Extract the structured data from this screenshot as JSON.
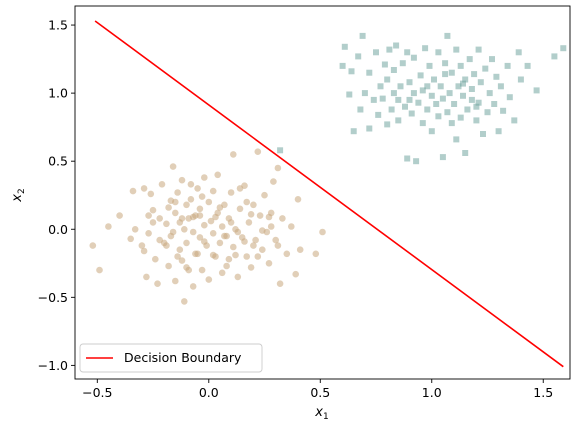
{
  "chart_data": {
    "type": "scatter",
    "xlabel": "x",
    "xlabel_sub": "1",
    "ylabel": "x",
    "ylabel_sub": "2",
    "xlim": [
      -0.6,
      1.62
    ],
    "ylim": [
      -1.1,
      1.64
    ],
    "xticks": [
      -0.5,
      0.0,
      0.5,
      1.0,
      1.5
    ],
    "xtick_labels": [
      "−0.5",
      "0.0",
      "0.5",
      "1.0",
      "1.5"
    ],
    "yticks": [
      -1.0,
      -0.5,
      0.0,
      0.5,
      1.0,
      1.5
    ],
    "ytick_labels": [
      "−1.0",
      "−0.5",
      "0.0",
      "0.5",
      "1.0",
      "1.5"
    ],
    "grid": false,
    "legend": {
      "placement": "lower-left",
      "entries": [
        "Decision Boundary"
      ]
    },
    "series": [
      {
        "marker": "circle",
        "color": "#c8a87e",
        "opacity": 0.55,
        "points": [
          [
            -0.52,
            -0.12
          ],
          [
            -0.49,
            -0.3
          ],
          [
            -0.45,
            0.02
          ],
          [
            -0.4,
            0.1
          ],
          [
            -0.35,
            -0.07
          ],
          [
            -0.34,
            0.28
          ],
          [
            -0.33,
            0.0
          ],
          [
            -0.3,
            -0.12
          ],
          [
            -0.29,
            0.3
          ],
          [
            -0.28,
            -0.35
          ],
          [
            -0.27,
            -0.03
          ],
          [
            -0.26,
            0.26
          ],
          [
            -0.25,
            0.14
          ],
          [
            -0.24,
            -0.22
          ],
          [
            -0.23,
            -0.4
          ],
          [
            -0.22,
            0.08
          ],
          [
            -0.21,
            0.33
          ],
          [
            -0.2,
            -0.1
          ],
          [
            -0.19,
            0.04
          ],
          [
            -0.18,
            -0.27
          ],
          [
            -0.17,
            0.21
          ],
          [
            -0.17,
            -0.05
          ],
          [
            -0.16,
            0.46
          ],
          [
            -0.15,
            -0.38
          ],
          [
            -0.15,
            0.12
          ],
          [
            -0.14,
            0.27
          ],
          [
            -0.13,
            -0.15
          ],
          [
            -0.13,
            0.05
          ],
          [
            -0.12,
            0.36
          ],
          [
            -0.12,
            -0.23
          ],
          [
            -0.11,
            0.0
          ],
          [
            -0.11,
            -0.53
          ],
          [
            -0.1,
            0.18
          ],
          [
            -0.1,
            -0.1
          ],
          [
            -0.09,
            -0.3
          ],
          [
            -0.09,
            0.08
          ],
          [
            -0.08,
            0.22
          ],
          [
            -0.07,
            -0.02
          ],
          [
            -0.07,
            -0.42
          ],
          [
            -0.06,
            0.1
          ],
          [
            -0.05,
            0.3
          ],
          [
            -0.05,
            -0.18
          ],
          [
            -0.04,
            -0.06
          ],
          [
            -0.04,
            0.15
          ],
          [
            -0.03,
            -0.3
          ],
          [
            -0.02,
            0.03
          ],
          [
            -0.02,
            0.38
          ],
          [
            -0.01,
            -0.12
          ],
          [
            0.0,
            0.2
          ],
          [
            0.0,
            -0.37
          ],
          [
            0.01,
            0.06
          ],
          [
            0.02,
            -0.03
          ],
          [
            0.02,
            0.28
          ],
          [
            0.03,
            -0.2
          ],
          [
            0.04,
            0.12
          ],
          [
            0.04,
            0.4
          ],
          [
            0.05,
            -0.1
          ],
          [
            0.06,
            0.02
          ],
          [
            0.06,
            -0.32
          ],
          [
            0.07,
            0.18
          ],
          [
            0.08,
            -0.05
          ],
          [
            0.09,
            0.08
          ],
          [
            0.09,
            -0.22
          ],
          [
            0.1,
            0.27
          ],
          [
            0.11,
            -0.13
          ],
          [
            0.11,
            0.55
          ],
          [
            0.12,
            0.0
          ],
          [
            0.13,
            -0.35
          ],
          [
            0.14,
            0.15
          ],
          [
            0.15,
            -0.06
          ],
          [
            0.16,
            0.32
          ],
          [
            0.17,
            -0.2
          ],
          [
            0.18,
            0.05
          ],
          [
            0.19,
            -0.28
          ],
          [
            0.2,
            0.18
          ],
          [
            0.21,
            -0.08
          ],
          [
            0.22,
            0.57
          ],
          [
            0.23,
            0.1
          ],
          [
            0.24,
            -0.15
          ],
          [
            0.25,
            0.25
          ],
          [
            0.26,
            -0.02
          ],
          [
            0.27,
            -0.25
          ],
          [
            0.28,
            0.12
          ],
          [
            0.29,
            0.35
          ],
          [
            0.3,
            -0.08
          ],
          [
            0.31,
            0.45
          ],
          [
            0.32,
            -0.4
          ],
          [
            0.33,
            0.08
          ],
          [
            0.35,
            -0.18
          ],
          [
            0.37,
            0.02
          ],
          [
            0.39,
            -0.33
          ],
          [
            0.4,
            0.22
          ],
          [
            0.41,
            -0.15
          ],
          [
            0.48,
            -0.18
          ],
          [
            0.51,
            -0.02
          ],
          [
            -0.22,
            -0.08
          ],
          [
            -0.07,
            0.09
          ],
          [
            0.16,
            -0.09
          ],
          [
            0.03,
            0.09
          ],
          [
            -0.14,
            -0.2
          ],
          [
            0.19,
            0.11
          ],
          [
            -0.29,
            -0.16
          ],
          [
            0.12,
            -0.19
          ],
          [
            -0.03,
            0.24
          ],
          [
            0.27,
            0.09
          ],
          [
            -0.18,
            0.16
          ],
          [
            0.07,
            -0.05
          ],
          [
            -0.1,
            -0.28
          ],
          [
            0.24,
            -0.01
          ],
          [
            -0.25,
            0.05
          ],
          [
            0.31,
            -0.12
          ],
          [
            0.02,
            -0.19
          ],
          [
            -0.15,
            0.2
          ],
          [
            0.17,
            0.2
          ],
          [
            -0.06,
            -0.18
          ],
          [
            0.1,
            0.05
          ],
          [
            -0.19,
            -0.12
          ],
          [
            0.05,
            0.16
          ],
          [
            -0.12,
            0.08
          ],
          [
            0.22,
            -0.2
          ],
          [
            -0.02,
            -0.09
          ],
          [
            0.14,
            0.3
          ],
          [
            -0.27,
            0.1
          ],
          [
            0.08,
            -0.27
          ],
          [
            -0.08,
            0.33
          ],
          [
            0.28,
            0.02
          ],
          [
            -0.16,
            -0.02
          ],
          [
            0.2,
            -0.12
          ],
          [
            -0.04,
            0.1
          ],
          [
            0.13,
            -0.02
          ]
        ]
      },
      {
        "marker": "square",
        "color": "#73a6a0",
        "opacity": 0.55,
        "points": [
          [
            0.32,
            0.58
          ],
          [
            0.6,
            1.2
          ],
          [
            0.61,
            1.34
          ],
          [
            0.63,
            0.99
          ],
          [
            0.64,
            1.16
          ],
          [
            0.65,
            0.72
          ],
          [
            0.67,
            1.27
          ],
          [
            0.68,
            0.88
          ],
          [
            0.69,
            1.42
          ],
          [
            0.7,
            1.0
          ],
          [
            0.72,
            0.74
          ],
          [
            0.72,
            1.15
          ],
          [
            0.74,
            0.95
          ],
          [
            0.75,
            1.3
          ],
          [
            0.76,
            0.84
          ],
          [
            0.77,
            1.05
          ],
          [
            0.78,
            0.96
          ],
          [
            0.79,
            1.21
          ],
          [
            0.8,
            0.77
          ],
          [
            0.8,
            1.1
          ],
          [
            0.81,
            1.32
          ],
          [
            0.82,
            0.88
          ],
          [
            0.83,
            1.0
          ],
          [
            0.83,
            1.17
          ],
          [
            0.84,
            1.35
          ],
          [
            0.85,
            0.8
          ],
          [
            0.85,
            0.95
          ],
          [
            0.86,
            1.05
          ],
          [
            0.87,
            1.22
          ],
          [
            0.88,
            0.9
          ],
          [
            0.89,
            1.3
          ],
          [
            0.89,
            0.52
          ],
          [
            0.9,
            1.08
          ],
          [
            0.91,
            0.85
          ],
          [
            0.92,
            1.0
          ],
          [
            0.92,
            1.26
          ],
          [
            0.93,
            0.5
          ],
          [
            0.94,
            0.93
          ],
          [
            0.95,
            1.13
          ],
          [
            0.96,
            0.78
          ],
          [
            0.96,
            1.02
          ],
          [
            0.97,
            1.33
          ],
          [
            0.98,
            0.88
          ],
          [
            0.99,
            1.2
          ],
          [
            1.0,
            0.98
          ],
          [
            1.0,
            0.72
          ],
          [
            1.01,
            1.1
          ],
          [
            1.02,
            0.92
          ],
          [
            1.03,
            1.3
          ],
          [
            1.03,
            0.83
          ],
          [
            1.04,
            1.05
          ],
          [
            1.05,
            0.53
          ],
          [
            1.05,
            0.96
          ],
          [
            1.06,
            1.22
          ],
          [
            1.07,
            0.86
          ],
          [
            1.07,
            1.42
          ],
          [
            1.08,
            1.0
          ],
          [
            1.09,
            0.78
          ],
          [
            1.09,
            1.15
          ],
          [
            1.1,
            0.92
          ],
          [
            1.11,
            1.32
          ],
          [
            1.11,
            0.66
          ],
          [
            1.12,
            1.05
          ],
          [
            1.13,
            0.82
          ],
          [
            1.13,
            1.2
          ],
          [
            1.14,
            0.98
          ],
          [
            1.15,
            1.1
          ],
          [
            1.15,
            0.56
          ],
          [
            1.16,
            0.88
          ],
          [
            1.17,
            1.25
          ],
          [
            1.18,
            0.95
          ],
          [
            1.18,
            1.03
          ],
          [
            1.19,
            1.14
          ],
          [
            1.2,
            0.8
          ],
          [
            1.21,
            1.32
          ],
          [
            1.21,
            0.93
          ],
          [
            1.22,
            1.08
          ],
          [
            1.23,
            0.7
          ],
          [
            1.24,
            1.18
          ],
          [
            1.25,
            0.86
          ],
          [
            1.26,
            1.0
          ],
          [
            1.27,
            1.25
          ],
          [
            1.28,
            0.92
          ],
          [
            1.29,
            1.12
          ],
          [
            1.3,
            0.72
          ],
          [
            1.31,
            1.05
          ],
          [
            1.32,
            0.87
          ],
          [
            1.34,
            1.2
          ],
          [
            1.35,
            0.97
          ],
          [
            1.37,
            0.8
          ],
          [
            1.39,
            1.3
          ],
          [
            1.4,
            1.1
          ],
          [
            1.43,
            1.2
          ],
          [
            1.47,
            1.02
          ],
          [
            1.55,
            1.27
          ],
          [
            1.59,
            1.33
          ],
          [
            0.98,
            1.05
          ],
          [
            1.14,
            1.07
          ],
          [
            0.9,
            0.95
          ],
          [
            1.06,
            1.14
          ],
          [
            1.2,
            0.9
          ]
        ]
      }
    ],
    "boundary": {
      "name": "Decision Boundary",
      "color": "#ff0000",
      "points": [
        [
          -0.51,
          1.53
        ],
        [
          1.59,
          -1.01
        ]
      ]
    }
  }
}
